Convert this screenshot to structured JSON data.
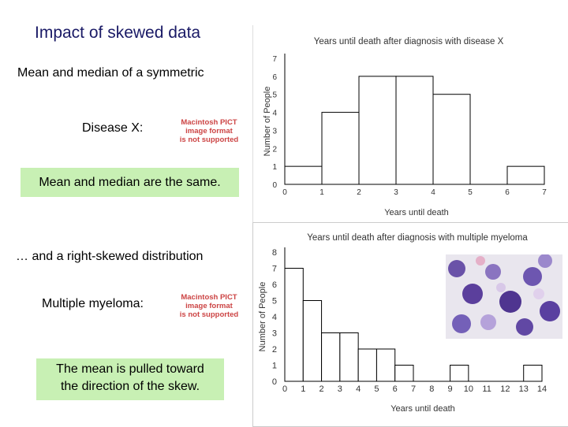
{
  "slide": {
    "title": "Impact of skewed data",
    "symmetric_heading": "Mean and median of a symmetric",
    "disease_label": "Disease X:",
    "pict_1": [
      "Macintosh PICT",
      "image format",
      "is not supported"
    ],
    "box_1": "Mean and median are the same.",
    "skewed_heading": "… and a right-skewed distribution",
    "myeloma_label": "Multiple myeloma:",
    "pict_2": [
      "Macintosh PICT",
      "image format",
      "is not supported"
    ],
    "box_2": [
      "The mean is pulled toward",
      "the direction of the skew."
    ]
  },
  "chart_data": [
    {
      "type": "bar",
      "title": "Years until death after diagnosis with disease X",
      "xlabel": "Years until death",
      "ylabel": "Number of People",
      "x_ticks": [
        "0",
        "1",
        "2",
        "3",
        "4",
        "5",
        "6",
        "7"
      ],
      "y_ticks": [
        "0",
        "1",
        "2",
        "3",
        "4",
        "5",
        "6",
        "7"
      ],
      "bins": [
        [
          0,
          1
        ],
        [
          1,
          2
        ],
        [
          2,
          3
        ],
        [
          3,
          4
        ],
        [
          4,
          5
        ],
        [
          5,
          6
        ],
        [
          6,
          7
        ]
      ],
      "values": [
        1,
        4,
        6,
        6,
        5,
        0,
        1
      ],
      "ylim": [
        0,
        7
      ],
      "xlim": [
        0,
        7
      ]
    },
    {
      "type": "bar",
      "title": "Years until death after diagnosis with multiple myeloma",
      "xlabel": "Years until death",
      "ylabel": "Number of People",
      "x_ticks": [
        "0",
        "1",
        "2",
        "3",
        "4",
        "5",
        "6",
        "7",
        "8",
        "9",
        "10",
        "11",
        "12",
        "13",
        "14"
      ],
      "y_ticks": [
        "0",
        "1",
        "2",
        "3",
        "4",
        "5",
        "6",
        "7",
        "8"
      ],
      "bins": [
        [
          0,
          1
        ],
        [
          1,
          2
        ],
        [
          2,
          3
        ],
        [
          3,
          4
        ],
        [
          4,
          5
        ],
        [
          5,
          6
        ],
        [
          6,
          7
        ],
        [
          9,
          10
        ],
        [
          13,
          14
        ]
      ],
      "values": [
        7,
        5,
        3,
        3,
        2,
        2,
        1,
        1,
        1
      ],
      "ylim": [
        0,
        8
      ],
      "xlim": [
        0,
        14
      ]
    }
  ]
}
